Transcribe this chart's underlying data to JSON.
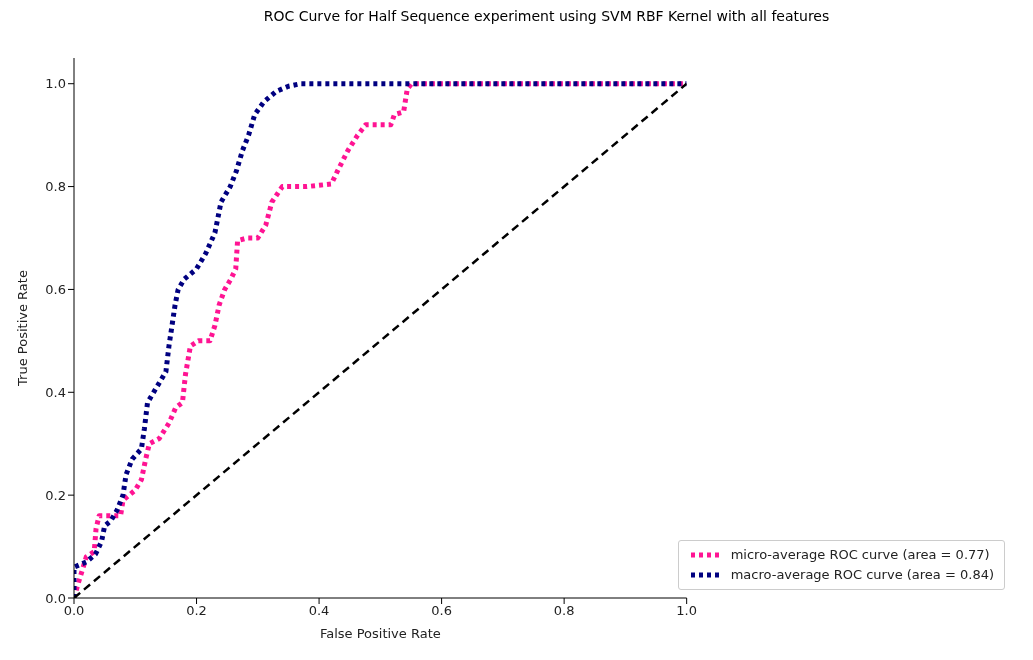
{
  "chart_data": {
    "type": "line",
    "title": "ROC Curve for Half Sequence experiment using SVM RBF Kernel with all features",
    "xlabel": "False Positive Rate",
    "ylabel": "True Positive Rate",
    "xlim": [
      0,
      1
    ],
    "ylim": [
      0,
      1.05
    ],
    "xticks": [
      {
        "value": 0,
        "label": "0.0"
      },
      {
        "value": 0.2,
        "label": "0.2"
      },
      {
        "value": 0.4,
        "label": "0.4"
      },
      {
        "value": 0.6,
        "label": "0.6"
      },
      {
        "value": 0.8,
        "label": "0.8"
      },
      {
        "value": 1,
        "label": "1.0"
      }
    ],
    "yticks": [
      {
        "value": 0,
        "label": "0.0"
      },
      {
        "value": 0.2,
        "label": "0.2"
      },
      {
        "value": 0.4,
        "label": "0.4"
      },
      {
        "value": 0.6,
        "label": "0.6"
      },
      {
        "value": 0.8,
        "label": "0.8"
      },
      {
        "value": 1,
        "label": "1.0"
      }
    ],
    "grid": false,
    "legend": "bottom right",
    "marker": "none",
    "series": [
      {
        "name": "micro-average ROC curve (area = 0.77)",
        "color": "#ff1493",
        "line_style": "dotted",
        "x": [
          0,
          0.006,
          0.015,
          0.02,
          0.033,
          0.036,
          0.041,
          0.06,
          0.076,
          0.08,
          0.09,
          0.1,
          0.11,
          0.117,
          0.123,
          0.139,
          0.155,
          0.166,
          0.177,
          0.182,
          0.19,
          0.203,
          0.222,
          0.23,
          0.237,
          0.246,
          0.256,
          0.264,
          0.267,
          0.283,
          0.3,
          0.313,
          0.323,
          0.34,
          0.38,
          0.42,
          0.43,
          0.447,
          0.463,
          0.476,
          0.517,
          0.523,
          0.538,
          0.544,
          0.551,
          1
        ],
        "values": [
          0,
          0.025,
          0.06,
          0.08,
          0.09,
          0.135,
          0.16,
          0.16,
          0.16,
          0.19,
          0.2,
          0.21,
          0.23,
          0.27,
          0.3,
          0.31,
          0.34,
          0.37,
          0.38,
          0.435,
          0.49,
          0.5,
          0.5,
          0.53,
          0.57,
          0.6,
          0.62,
          0.64,
          0.695,
          0.7,
          0.7,
          0.725,
          0.77,
          0.8,
          0.8,
          0.805,
          0.83,
          0.87,
          0.9,
          0.92,
          0.92,
          0.94,
          0.945,
          0.99,
          1,
          1
        ]
      },
      {
        "name": "macro-average ROC curve (area = 0.84)",
        "color": "#000080",
        "line_style": "dotted",
        "x": [
          0,
          0,
          0.02,
          0.035,
          0.045,
          0.05,
          0.06,
          0.07,
          0.08,
          0.085,
          0.095,
          0.11,
          0.115,
          0.12,
          0.135,
          0.15,
          0.155,
          0.16,
          0.165,
          0.17,
          0.18,
          0.2,
          0.215,
          0.23,
          0.24,
          0.255,
          0.265,
          0.275,
          0.285,
          0.295,
          0.31,
          0.33,
          0.35,
          0.37,
          1
        ],
        "values": [
          0,
          0.06,
          0.07,
          0.085,
          0.11,
          0.14,
          0.15,
          0.17,
          0.2,
          0.24,
          0.27,
          0.29,
          0.33,
          0.38,
          0.41,
          0.44,
          0.49,
          0.53,
          0.57,
          0.6,
          0.62,
          0.64,
          0.67,
          0.71,
          0.77,
          0.8,
          0.83,
          0.87,
          0.9,
          0.94,
          0.965,
          0.985,
          0.995,
          1,
          1
        ]
      },
      {
        "color": "#000000",
        "line_style": "dashed",
        "x": [
          0,
          1
        ],
        "values": [
          0,
          1
        ]
      }
    ]
  }
}
